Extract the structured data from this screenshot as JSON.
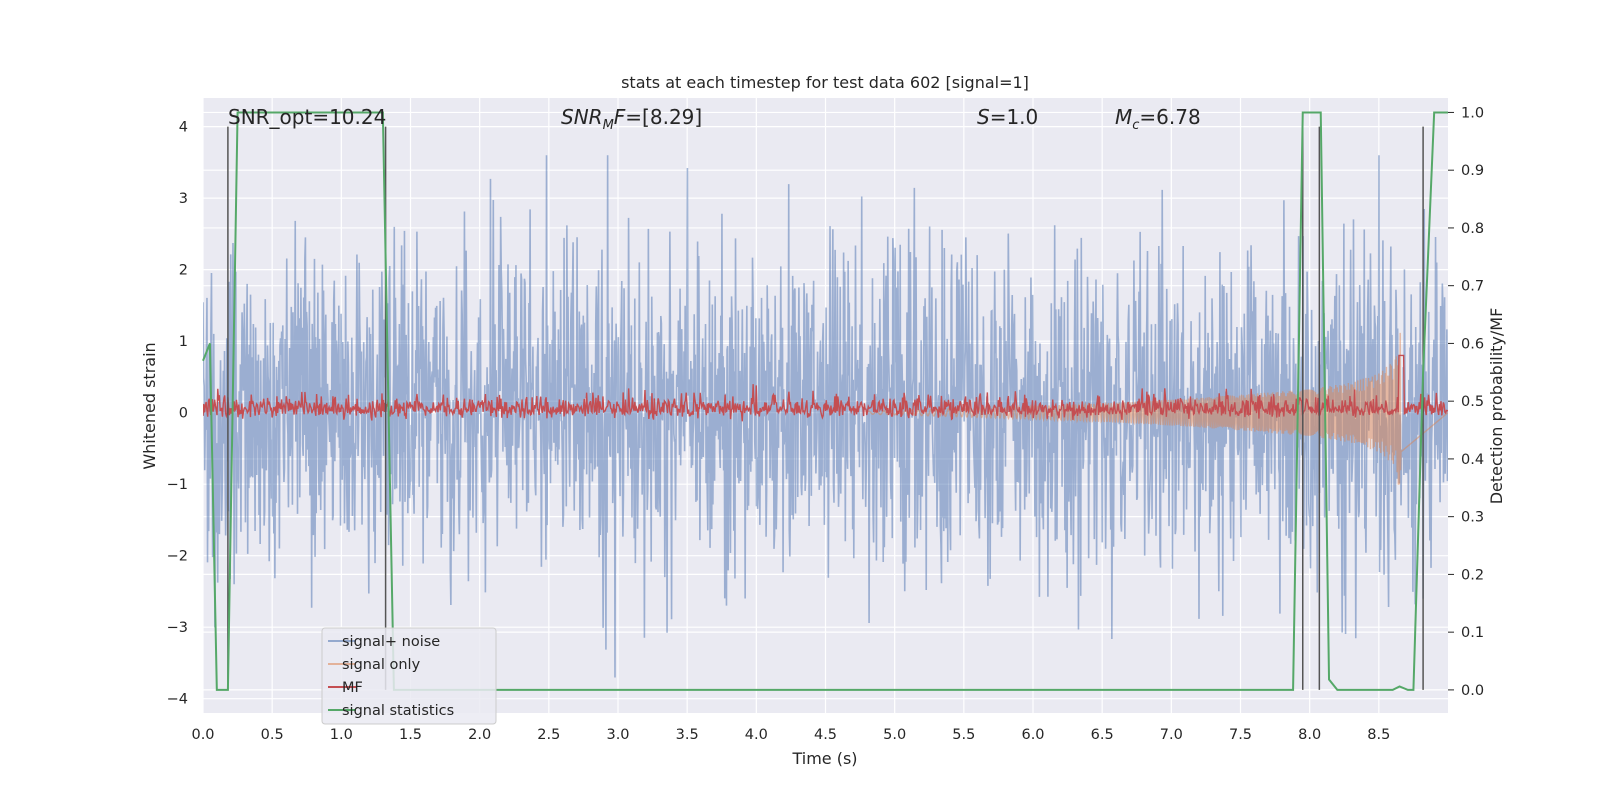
{
  "chart_data": {
    "type": "line",
    "title": "stats at each timestep for test data 602 [signal=1]",
    "xlabel": "Time (s)",
    "ylabel": "Whitened strain",
    "ylabel_right": "Detection probability/MF",
    "xlim": [
      0.0,
      9.0
    ],
    "ylim": [
      -4.2,
      4.4
    ],
    "ylim_right": [
      -0.04,
      1.025
    ],
    "x_ticks": [
      "0.0",
      "0.5",
      "1.0",
      "1.5",
      "2.0",
      "2.5",
      "3.0",
      "3.5",
      "4.0",
      "4.5",
      "5.0",
      "5.5",
      "6.0",
      "6.5",
      "7.0",
      "7.5",
      "8.0",
      "8.5"
    ],
    "y_ticks": [
      "−4",
      "−3",
      "−2",
      "−1",
      "0",
      "1",
      "2",
      "3",
      "4"
    ],
    "y_ticks_right": [
      "0.0",
      "0.1",
      "0.2",
      "0.3",
      "0.4",
      "0.5",
      "0.6",
      "0.7",
      "0.8",
      "0.9",
      "1.0"
    ],
    "grid": true,
    "legend_position": "bottom-left",
    "annotations": [
      {
        "text": "SNR_opt=10.24"
      },
      {
        "math_base": "SNR",
        "math_sub": "M",
        "math_tail": "F",
        "rest": "=[8.29]"
      },
      {
        "math_base": "S",
        "rest": "=1.0"
      },
      {
        "math_base": "M",
        "math_sub": "c",
        "rest": "=6.78"
      }
    ],
    "series": [
      {
        "name": "signal+ noise",
        "color": "#4c72b0",
        "alpha": 0.5,
        "axis": "left",
        "envelope_y": [
          -4.0,
          3.6
        ]
      },
      {
        "name": "signal only",
        "color": "#dd8452",
        "alpha": 0.5,
        "axis": "left",
        "envelope": {
          "x": [
            4.8,
            5.5,
            6.0,
            6.5,
            7.0,
            7.5,
            8.0,
            8.3,
            8.5,
            8.62,
            8.66
          ],
          "amp": [
            0.02,
            0.06,
            0.09,
            0.13,
            0.18,
            0.25,
            0.33,
            0.42,
            0.55,
            0.75,
            1.25
          ]
        }
      },
      {
        "name": "MF",
        "color": "#c44e52",
        "axis": "left",
        "baseline": 0.05,
        "band": [
          0.0,
          0.42
        ]
      },
      {
        "name": "signal statistics",
        "color": "#55a868",
        "axis": "right",
        "x": [
          0.0,
          0.05,
          0.1,
          0.18,
          0.25,
          0.32,
          1.3,
          1.38,
          1.45,
          7.88,
          7.95,
          8.02,
          8.08,
          8.14,
          8.2,
          8.6,
          8.65,
          8.71,
          8.75,
          8.82,
          8.9,
          9.0
        ],
        "y": [
          0.57,
          0.6,
          0.0,
          0.0,
          1.0,
          1.0,
          1.0,
          0.0,
          0.0,
          0.0,
          1.0,
          1.0,
          1.0,
          0.018,
          0.0,
          0.0,
          0.006,
          0.0,
          0.0,
          0.55,
          1.0,
          1.0
        ]
      }
    ],
    "vertical_lines": [
      0.18,
      1.32,
      7.95,
      8.07,
      8.82
    ]
  }
}
